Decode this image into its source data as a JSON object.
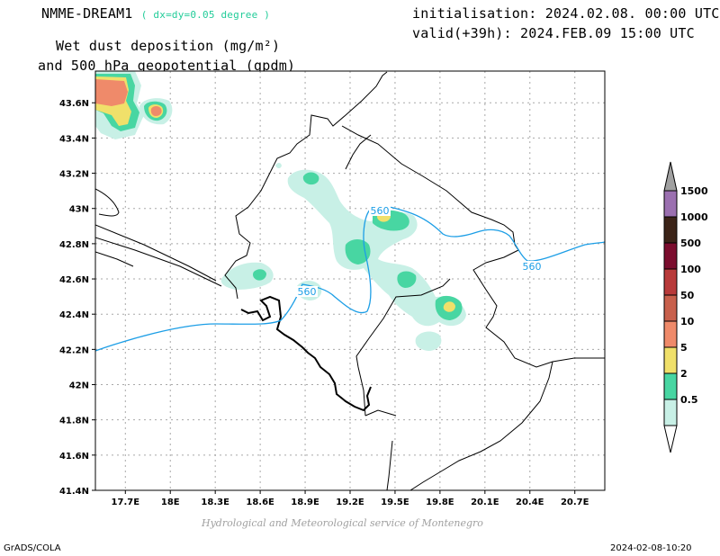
{
  "header": {
    "model": "NMME-DREAM1",
    "resolution": "( dx=dy=0.05 degree )",
    "title_line1": "Wet dust deposition (mg/m²)",
    "title_line2": "and 500 hPa geopotential (gpdm)",
    "init": "initialisation: 2024.02.08. 00:00 UTC",
    "valid": "valid(+39h): 2024.FEB.09 15:00 UTC"
  },
  "credit": "Hydrological and Meteorological service of Montenegro",
  "footer": {
    "left": "GrADS/COLA",
    "right": "2024-02-08-10:20"
  },
  "chart_data": {
    "type": "map",
    "lon_labels": [
      "17.7E",
      "18E",
      "18.3E",
      "18.6E",
      "18.9E",
      "19.2E",
      "19.5E",
      "19.8E",
      "20.1E",
      "20.4E",
      "20.7E"
    ],
    "lat_labels": [
      "43.6N",
      "43.4N",
      "43.2N",
      "43N",
      "42.8N",
      "42.6N",
      "42.4N",
      "42.2N",
      "42N",
      "41.8N",
      "41.6N",
      "41.4N"
    ],
    "lon_range": [
      17.5,
      20.9
    ],
    "lat_range": [
      41.4,
      43.78
    ],
    "grid": true,
    "contour_labels": [
      "560",
      "560",
      "560"
    ],
    "colorbar": {
      "labels": [
        "1500",
        "1000",
        "500",
        "100",
        "50",
        "10",
        "5",
        "2",
        "0.5"
      ],
      "colors": [
        "#9b70b0",
        "#3c2418",
        "#7b0d2e",
        "#b83a3a",
        "#c8604c",
        "#ef8a6a",
        "#f0e06a",
        "#48d6a2",
        "#c8f0e6"
      ],
      "cap_color": "#a0a0a0"
    }
  }
}
